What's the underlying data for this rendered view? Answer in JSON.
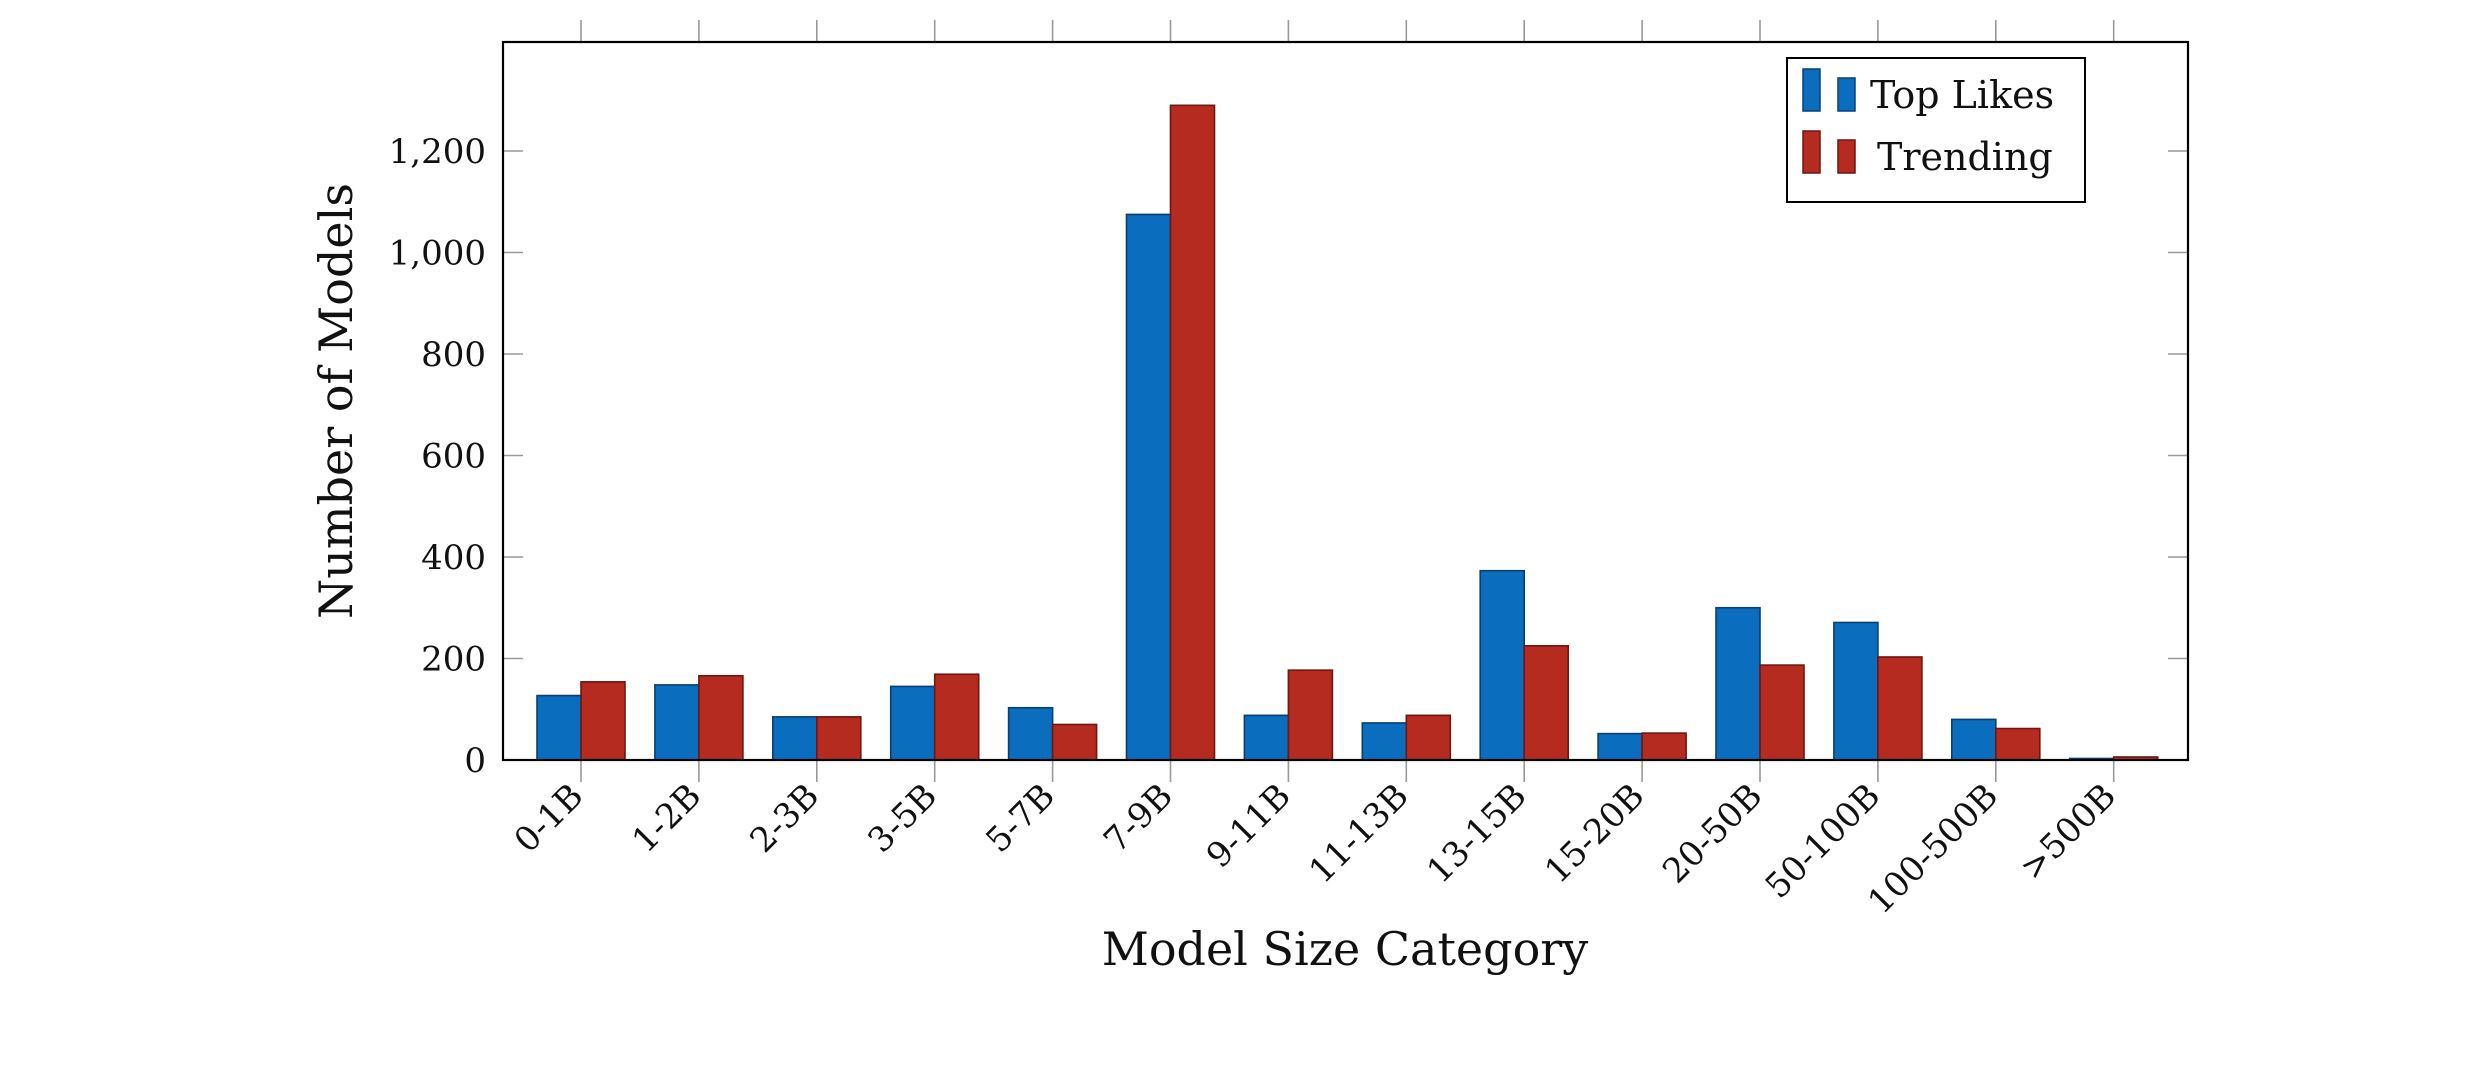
{
  "chart_data": {
    "type": "bar",
    "title": "",
    "xlabel": "Model Size Category",
    "ylabel": "Number of Models",
    "categories": [
      "0-1B",
      "1-2B",
      "2-3B",
      "3-5B",
      "5-7B",
      "7-9B",
      "9-11B",
      "11-13B",
      "13-15B",
      "15-20B",
      "20-50B",
      "50-100B",
      "100-500B",
      ">500B"
    ],
    "series": [
      {
        "name": "Top Likes",
        "color": "#0b6dbd",
        "values": [
          127,
          148,
          85,
          145,
          103,
          1075,
          88,
          73,
          373,
          52,
          300,
          271,
          80,
          3
        ]
      },
      {
        "name": "Trending",
        "color": "#b52b1f",
        "values": [
          154,
          166,
          85,
          169,
          70,
          1290,
          177,
          88,
          225,
          53,
          187,
          203,
          62,
          6
        ]
      }
    ],
    "ylim": [
      0,
      1200
    ],
    "yticks": [
      0,
      200,
      400,
      600,
      800,
      1000,
      1200
    ],
    "ytick_labels": [
      "0",
      "200",
      "400",
      "600",
      "800",
      "1,000",
      "1,200"
    ],
    "legend_position": "top-right",
    "grid": false
  }
}
